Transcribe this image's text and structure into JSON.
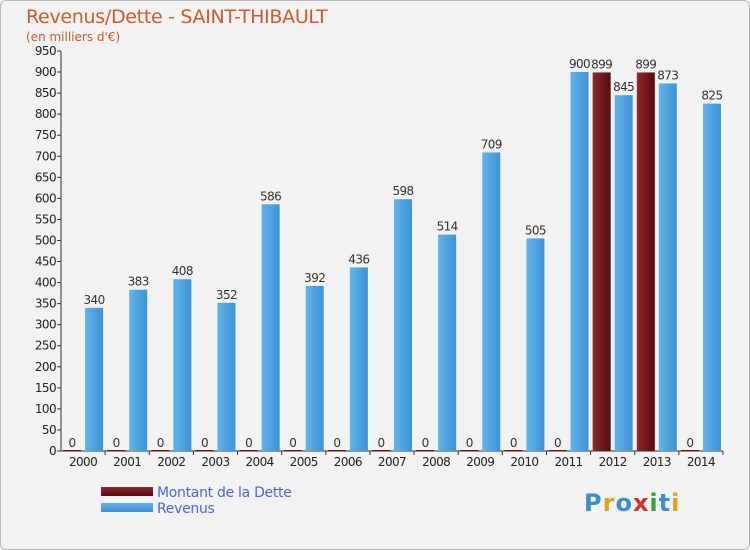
{
  "header": {
    "title": "Revenus/Dette - SAINT-THIBAULT",
    "subtitle": "(en milliers d'€)"
  },
  "legend": {
    "items": [
      {
        "label": "Montant de la Dette",
        "color": "#6b0f14"
      },
      {
        "label": "Revenus",
        "color": "#4aa0e0"
      }
    ]
  },
  "logo": {
    "text": "Proxiti",
    "letters": [
      {
        "ch": "P",
        "color": "#3a8fd0"
      },
      {
        "ch": "r",
        "color": "#e0a020"
      },
      {
        "ch": "o",
        "color": "#3a8fd0"
      },
      {
        "ch": "x",
        "color": "#d03030"
      },
      {
        "ch": "i",
        "color": "#3aa040"
      },
      {
        "ch": "t",
        "color": "#3a8fd0"
      },
      {
        "ch": "i",
        "color": "#e0a020"
      }
    ]
  },
  "chart_data": {
    "type": "bar",
    "title": "Revenus/Dette - SAINT-THIBAULT",
    "ylabel": "(en milliers d'€)",
    "xlabel": "",
    "ylim": [
      0,
      950
    ],
    "ytick_step": 50,
    "grid": false,
    "categories": [
      "2000",
      "2001",
      "2002",
      "2003",
      "2004",
      "2005",
      "2006",
      "2007",
      "2008",
      "2009",
      "2010",
      "2011",
      "2012",
      "2013",
      "2014"
    ],
    "series": [
      {
        "name": "Montant de la Dette",
        "color": "#6b0f14",
        "values": [
          0,
          0,
          0,
          0,
          0,
          0,
          0,
          0,
          0,
          0,
          0,
          0,
          899,
          899,
          0
        ],
        "labels": [
          "0",
          "0",
          "0",
          "0",
          "0",
          "0",
          "0",
          "0",
          "0",
          "0",
          "0",
          "0",
          "899",
          "899",
          "0"
        ]
      },
      {
        "name": "Revenus",
        "color": "#4aa0e0",
        "values": [
          340,
          383,
          408,
          352,
          586,
          392,
          436,
          598,
          514,
          709,
          505,
          900,
          845,
          873,
          825
        ],
        "labels": [
          "340",
          "383",
          "408",
          "352",
          "586",
          "392",
          "436",
          "598",
          "514",
          "709",
          "505",
          "900",
          "845",
          "873",
          "825"
        ]
      }
    ]
  }
}
